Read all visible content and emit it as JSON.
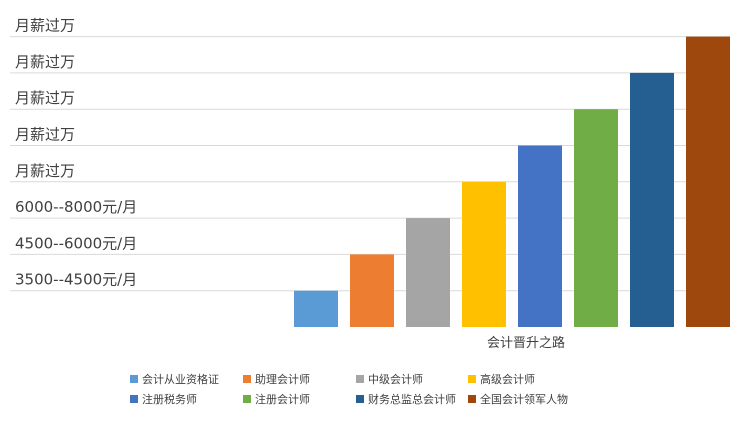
{
  "chart_data": {
    "type": "bar",
    "xlabel": "会计晋升之路",
    "y_tick_labels": [
      "3500--4500元/月",
      "4500--6000元/月",
      "6000--8000元/月",
      "月薪过万",
      "月薪过万",
      "月薪过万",
      "月薪过万",
      "月薪过万"
    ],
    "grid": true,
    "legend_position": "bottom",
    "series": [
      {
        "name": "会计从业资格证",
        "value": 1,
        "color": "#5B9BD5"
      },
      {
        "name": "助理会计师",
        "value": 2,
        "color": "#ED7D31"
      },
      {
        "name": "中级会计师",
        "value": 3,
        "color": "#A5A5A5"
      },
      {
        "name": "高级会计师",
        "value": 4,
        "color": "#FFC000"
      },
      {
        "name": "注册税务师",
        "value": 5,
        "color": "#4472C4"
      },
      {
        "name": "注册会计师",
        "value": 6,
        "color": "#70AD47"
      },
      {
        "name": "财务总监总会计师",
        "value": 7,
        "color": "#255E91"
      },
      {
        "name": "全国会计领军人物",
        "value": 8,
        "color": "#9E480E"
      }
    ],
    "ylim": [
      0,
      8
    ]
  }
}
